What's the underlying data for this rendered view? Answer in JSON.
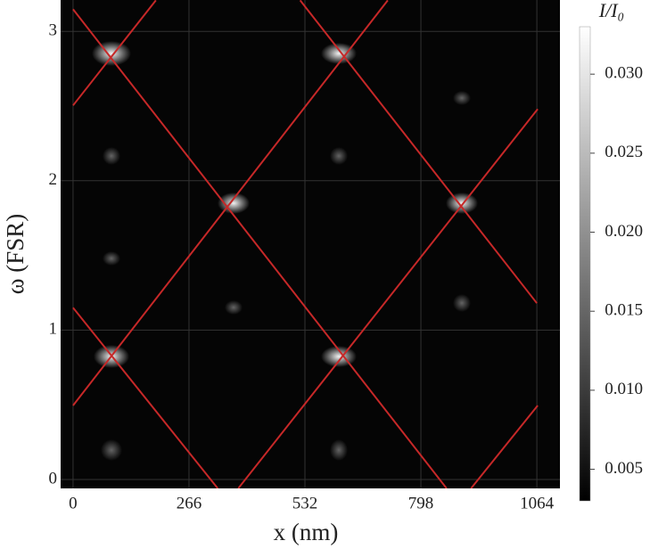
{
  "chart_data": {
    "type": "heatmap",
    "xlabel": "x (nm)",
    "ylabel": "ω (FSR)",
    "xlim": [
      -28.5,
      1117
    ],
    "ylim": [
      -0.06,
      3.21
    ],
    "xticks": [
      0,
      266,
      532,
      798,
      1064
    ],
    "yticks": [
      0,
      1,
      2,
      3
    ],
    "grid": true,
    "background": "#050505",
    "lines": [
      {
        "color": "#c62828",
        "x": [
          0,
          857
        ],
        "y": [
          3.148,
          -0.06
        ]
      },
      {
        "color": "#c62828",
        "x": [
          521,
          1064
        ],
        "y": [
          3.208,
          1.18
        ]
      },
      {
        "color": "#c62828",
        "x": [
          0,
          332
        ],
        "y": [
          1.15,
          -0.06
        ]
      },
      {
        "color": "#c62828",
        "x": [
          0,
          190
        ],
        "y": [
          2.504,
          3.208
        ]
      },
      {
        "color": "#c62828",
        "x": [
          0,
          722
        ],
        "y": [
          0.495,
          3.208
        ]
      },
      {
        "color": "#c62828",
        "x": [
          379,
          1066
        ],
        "y": [
          -0.06,
          2.48
        ]
      },
      {
        "color": "#c62828",
        "x": [
          913,
          1066
        ],
        "y": [
          -0.06,
          0.495
        ]
      }
    ],
    "colorbar": {
      "label": "I/I₀",
      "lim": [
        0.003,
        0.033
      ],
      "ticks": [
        0.005,
        {
          "value": 0.01,
          "label": "0.010"
        },
        0.015,
        {
          "value": 0.02,
          "label": "0.020"
        },
        0.025,
        {
          "value": 0.03,
          "label": "0.030"
        }
      ]
    }
  }
}
